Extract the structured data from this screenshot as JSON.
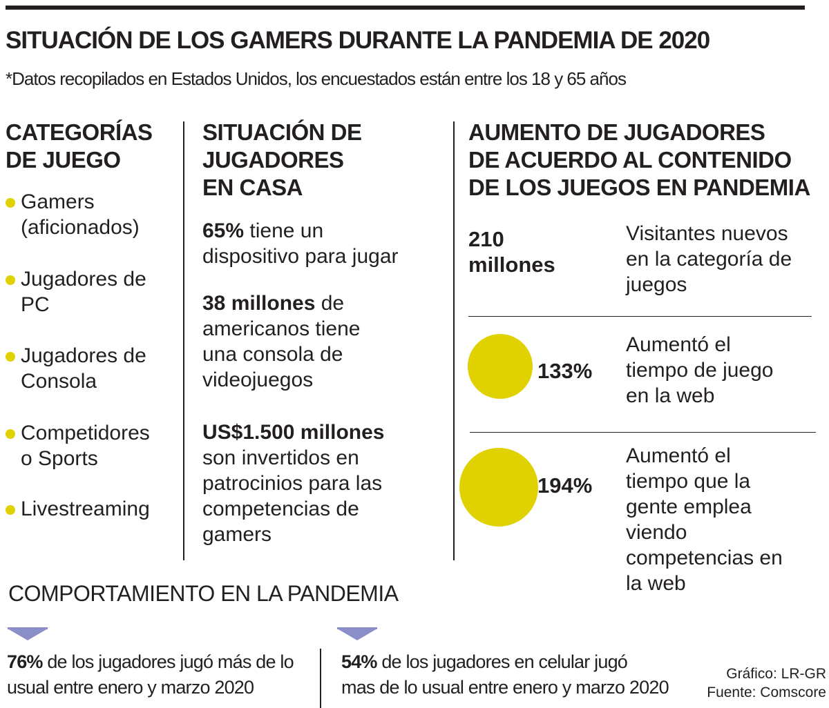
{
  "header": {
    "title": "SITUACIÓN DE LOS GAMERS DURANTE LA PANDEMIA DE 2020",
    "subtitle": "*Datos recopilados en Estados Unidos, los encuestados están entre los 18 y 65 años"
  },
  "categories": {
    "heading_line1": "CATEGORÍAS",
    "heading_line2": "DE JUEGO",
    "items": [
      {
        "line1": "Gamers",
        "line2": "(aficionados)"
      },
      {
        "line1": "Jugadores de",
        "line2": "PC"
      },
      {
        "line1": "Jugadores de",
        "line2": "Consola"
      },
      {
        "line1": "Competidores",
        "line2": "o Sports"
      },
      {
        "line1": "Livestreaming",
        "line2": ""
      }
    ],
    "bullet_color": "#e0d100"
  },
  "home": {
    "heading_line1": "SITUACIÓN DE",
    "heading_line2": "JUGADORES",
    "heading_line3": "EN CASA",
    "facts": [
      {
        "bold": "65%",
        "rest_line1": " tiene un",
        "rest_more": [
          "dispositivo para jugar"
        ]
      },
      {
        "bold": "38 millones",
        "rest_line1": " de",
        "rest_more": [
          "americanos tiene",
          "una consola de",
          "videojuegos"
        ]
      },
      {
        "bold": "US$1.500 millones",
        "rest_line1": "",
        "rest_more": [
          "son invertidos en",
          "patrocinios para las",
          "competencias de",
          "gamers"
        ]
      }
    ]
  },
  "increase": {
    "heading_line1": "AUMENTO DE JUGADORES",
    "heading_line2": "DE ACUERDO AL CONTENIDO",
    "heading_line3": "DE LOS JUEGOS EN PANDEMIA",
    "stats": [
      {
        "value_line1": "210",
        "value_line2": "millones",
        "desc": [
          "Visitantes nuevos",
          "en la categoría de",
          "juegos"
        ]
      },
      {
        "value": "133%",
        "percent": 133,
        "desc": [
          "Aumentó el",
          "tiempo de juego",
          "en la web"
        ]
      },
      {
        "value": "194%",
        "percent": 194,
        "desc": [
          "Aumentó el",
          "tiempo que la",
          "gente emplea",
          "viendo",
          "competencias en",
          "la web"
        ]
      }
    ],
    "circle_color": "#e0d100"
  },
  "behavior": {
    "title": "COMPORTAMIENTO EN LA PANDEMIA",
    "items": [
      {
        "bold": "76%",
        "line1": " de los jugadores jugó más de lo",
        "line2": "usual entre enero y marzo 2020"
      },
      {
        "bold": "54%",
        "line1": " de los jugadores en celular jugó",
        "line2": "mas de lo usual entre enero y marzo 2020"
      }
    ],
    "marker_color": "#8b8fc8"
  },
  "credits": {
    "graphic": "Gráfico: LR-GR",
    "source": "Fuente: Comscore"
  }
}
